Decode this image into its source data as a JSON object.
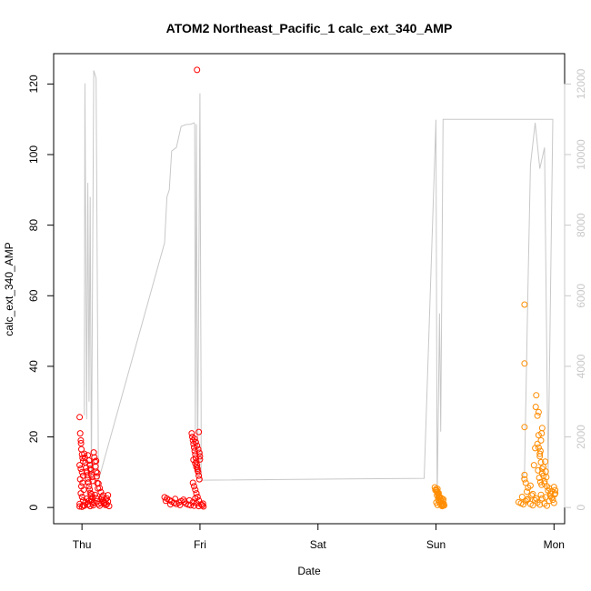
{
  "chart_data": {
    "type": "scatter",
    "title": "ATOM2 Northeast_Pacific_1 calc_ext_340_AMP",
    "xlabel": "Date",
    "ylabel": "calc_ext_340_AMP",
    "x_ticks": [
      "Thu",
      "Fri",
      "Sat",
      "Sun",
      "Mon"
    ],
    "x_tick_days": [
      0,
      1,
      2,
      3,
      4
    ],
    "xlim_days": [
      -0.24,
      4.09
    ],
    "ylim": [
      -4.6,
      128.6
    ],
    "y_ticks": [
      0,
      20,
      40,
      60,
      80,
      100,
      120
    ],
    "y2lim": [
      -460,
      12860
    ],
    "y2_ticks": [
      0,
      2000,
      4000,
      6000,
      8000,
      10000,
      12000
    ],
    "y2_color": "#c8c8c8",
    "grid": false,
    "legend": "none",
    "series": [
      {
        "color": "#ff0000",
        "marker": "open-circle",
        "points": [
          [
            -0.02,
            25.6
          ],
          [
            -0.015,
            21.0
          ],
          [
            -0.01,
            19.0
          ],
          [
            -0.008,
            18.2
          ],
          [
            -0.005,
            16.5
          ],
          [
            0.0,
            15.0
          ],
          [
            0.005,
            14.0
          ],
          [
            0.01,
            13.1
          ],
          [
            -0.02,
            12.0
          ],
          [
            -0.01,
            11.0
          ],
          [
            0.0,
            10.0
          ],
          [
            0.01,
            9.0
          ],
          [
            -0.015,
            8.0
          ],
          [
            0.005,
            7.0
          ],
          [
            -0.005,
            6.0
          ],
          [
            0.015,
            5.0
          ],
          [
            -0.01,
            4.0
          ],
          [
            0.0,
            3.0
          ],
          [
            0.01,
            2.0
          ],
          [
            -0.02,
            1.0
          ],
          [
            0.02,
            0.5
          ],
          [
            -0.02,
            0.3
          ],
          [
            0.0,
            0.2
          ],
          [
            0.01,
            0.6
          ],
          [
            0.02,
            15.2
          ],
          [
            0.025,
            14.1
          ],
          [
            0.03,
            12.7
          ],
          [
            0.035,
            11.3
          ],
          [
            0.04,
            10.2
          ],
          [
            0.045,
            9.1
          ],
          [
            0.05,
            8.2
          ],
          [
            0.055,
            7.1
          ],
          [
            0.06,
            6.0
          ],
          [
            0.065,
            5.1
          ],
          [
            0.07,
            4.1
          ],
          [
            0.075,
            3.2
          ],
          [
            0.08,
            2.2
          ],
          [
            0.085,
            1.6
          ],
          [
            0.09,
            1.1
          ],
          [
            0.095,
            0.6
          ],
          [
            0.03,
            1.5
          ],
          [
            0.04,
            2.5
          ],
          [
            0.05,
            0.8
          ],
          [
            0.06,
            1.9
          ],
          [
            0.07,
            0.4
          ],
          [
            0.08,
            3.8
          ],
          [
            0.09,
            2.9
          ],
          [
            0.1,
            1.4
          ],
          [
            0.05,
            14.8
          ],
          [
            0.06,
            13.3
          ],
          [
            0.065,
            12.1
          ],
          [
            0.07,
            11.0
          ],
          [
            0.075,
            10.5
          ],
          [
            0.08,
            9.4
          ],
          [
            0.085,
            8.6
          ],
          [
            0.09,
            7.5
          ],
          [
            0.1,
            15.6
          ],
          [
            0.105,
            14.2
          ],
          [
            0.11,
            13.0
          ],
          [
            0.115,
            11.6
          ],
          [
            0.12,
            10.1
          ],
          [
            0.125,
            8.8
          ],
          [
            0.13,
            6.9
          ],
          [
            0.135,
            5.4
          ],
          [
            0.11,
            3.6
          ],
          [
            0.12,
            2.7
          ],
          [
            0.13,
            1.8
          ],
          [
            0.14,
            1.0
          ],
          [
            0.15,
            0.5
          ],
          [
            0.16,
            1.3
          ],
          [
            0.17,
            2.4
          ],
          [
            0.18,
            3.4
          ],
          [
            0.15,
            5.5
          ],
          [
            0.16,
            4.4
          ],
          [
            0.17,
            3.0
          ],
          [
            0.18,
            2.0
          ],
          [
            0.19,
            1.2
          ],
          [
            0.2,
            0.7
          ],
          [
            0.21,
            2.6
          ],
          [
            0.22,
            3.5
          ],
          [
            0.19,
            1.5
          ],
          [
            0.2,
            2.2
          ],
          [
            0.21,
            0.9
          ],
          [
            0.22,
            1.7
          ],
          [
            0.23,
            0.4
          ],
          [
            0.14,
            6.8
          ],
          [
            0.13,
            9.8
          ],
          [
            0.12,
            13.2
          ],
          [
            0.7,
            2.9
          ],
          [
            0.72,
            2.5
          ],
          [
            0.74,
            2.1
          ],
          [
            0.76,
            1.7
          ],
          [
            0.78,
            1.3
          ],
          [
            0.8,
            1.0
          ],
          [
            0.82,
            1.4
          ],
          [
            0.84,
            1.8
          ],
          [
            0.86,
            2.2
          ],
          [
            0.88,
            1.1
          ],
          [
            0.9,
            0.8
          ],
          [
            0.92,
            0.6
          ],
          [
            0.94,
            1.5
          ],
          [
            0.96,
            2.6
          ],
          [
            0.71,
            1.9
          ],
          [
            0.75,
            0.9
          ],
          [
            0.79,
            2.4
          ],
          [
            0.83,
            0.7
          ],
          [
            0.87,
            1.6
          ],
          [
            0.91,
            2.0
          ],
          [
            0.95,
            0.5
          ],
          [
            0.97,
            1.2
          ],
          [
            0.99,
            0.4
          ],
          [
            1.01,
            0.9
          ],
          [
            0.93,
            21.0
          ],
          [
            0.935,
            20.0
          ],
          [
            0.94,
            19.0
          ],
          [
            0.945,
            18.0
          ],
          [
            0.95,
            17.0
          ],
          [
            0.955,
            16.0
          ],
          [
            0.96,
            15.0
          ],
          [
            0.965,
            14.0
          ],
          [
            0.97,
            13.0
          ],
          [
            0.975,
            12.0
          ],
          [
            0.98,
            11.0
          ],
          [
            0.985,
            10.0
          ],
          [
            0.99,
            9.0
          ],
          [
            0.995,
            8.0
          ],
          [
            0.94,
            7.0
          ],
          [
            0.95,
            6.0
          ],
          [
            0.96,
            5.0
          ],
          [
            0.97,
            4.0
          ],
          [
            0.98,
            3.0
          ],
          [
            0.99,
            2.0
          ],
          [
            0.955,
            19.5
          ],
          [
            0.965,
            18.5
          ],
          [
            0.975,
            17.5
          ],
          [
            0.985,
            16.5
          ],
          [
            0.995,
            15.5
          ],
          [
            1.0,
            14.5
          ],
          [
            0.945,
            13.5
          ],
          [
            0.96,
            12.5
          ],
          [
            0.97,
            11.5
          ],
          [
            0.98,
            10.5
          ],
          [
            0.99,
            21.4
          ],
          [
            1.0,
            13.6
          ],
          [
            0.975,
            124.0
          ],
          [
            1.02,
            0.6
          ],
          [
            1.025,
            1.1
          ],
          [
            1.03,
            0.3
          ]
        ]
      },
      {
        "color": "#ff8c00",
        "marker": "open-circle",
        "points": [
          [
            2.99,
            5.7
          ],
          [
            3.0,
            5.2
          ],
          [
            3.005,
            4.8
          ],
          [
            3.01,
            4.4
          ],
          [
            3.015,
            4.0
          ],
          [
            3.02,
            3.6
          ],
          [
            3.025,
            3.2
          ],
          [
            3.03,
            2.8
          ],
          [
            3.035,
            2.4
          ],
          [
            3.04,
            2.0
          ],
          [
            3.045,
            1.6
          ],
          [
            3.05,
            1.2
          ],
          [
            3.055,
            0.8
          ],
          [
            3.06,
            0.5
          ],
          [
            2.995,
            4.9
          ],
          [
            3.008,
            3.4
          ],
          [
            3.018,
            2.2
          ],
          [
            3.028,
            1.5
          ],
          [
            3.038,
            0.9
          ],
          [
            3.048,
            2.6
          ],
          [
            3.058,
            1.9
          ],
          [
            3.065,
            1.1
          ],
          [
            3.07,
            0.6
          ],
          [
            3.012,
            5.3
          ],
          [
            3.022,
            4.1
          ],
          [
            3.032,
            3.0
          ],
          [
            3.042,
            1.7
          ],
          [
            3.052,
            0.4
          ],
          [
            3.062,
            2.3
          ],
          [
            3.003,
            1.4
          ],
          [
            3.013,
            0.7
          ],
          [
            3.023,
            2.9
          ],
          [
            3.7,
            1.5
          ],
          [
            3.72,
            1.2
          ],
          [
            3.74,
            0.9
          ],
          [
            3.76,
            1.8
          ],
          [
            3.78,
            2.4
          ],
          [
            3.8,
            1.0
          ],
          [
            3.82,
            0.6
          ],
          [
            3.84,
            2.0
          ],
          [
            3.86,
            1.4
          ],
          [
            3.88,
            0.8
          ],
          [
            3.9,
            2.6
          ],
          [
            3.92,
            1.1
          ],
          [
            3.94,
            0.5
          ],
          [
            3.96,
            1.9
          ],
          [
            3.98,
            2.8
          ],
          [
            4.0,
            1.3
          ],
          [
            3.73,
            3.0
          ],
          [
            3.77,
            2.2
          ],
          [
            3.81,
            3.4
          ],
          [
            3.85,
            2.5
          ],
          [
            3.89,
            3.6
          ],
          [
            3.93,
            2.9
          ],
          [
            3.97,
            3.2
          ],
          [
            4.01,
            4.0
          ],
          [
            3.75,
            9.2
          ],
          [
            3.75,
            8.0
          ],
          [
            3.75,
            22.8
          ],
          [
            3.75,
            40.8
          ],
          [
            3.75,
            57.5
          ],
          [
            3.76,
            7.0
          ],
          [
            3.77,
            4.5
          ],
          [
            3.78,
            5.6
          ],
          [
            3.8,
            6.2
          ],
          [
            3.82,
            3.8
          ],
          [
            3.83,
            12.0
          ],
          [
            3.84,
            16.8
          ],
          [
            3.845,
            28.5
          ],
          [
            3.85,
            31.8
          ],
          [
            3.86,
            26.0
          ],
          [
            3.87,
            20.5
          ],
          [
            3.87,
            27.0
          ],
          [
            3.88,
            14.5
          ],
          [
            3.885,
            16.0
          ],
          [
            3.89,
            19.0
          ],
          [
            3.895,
            21.0
          ],
          [
            3.9,
            22.5
          ],
          [
            3.9,
            9.8
          ],
          [
            3.91,
            11.5
          ],
          [
            3.92,
            7.4
          ],
          [
            3.925,
            13.0
          ],
          [
            3.93,
            10.2
          ],
          [
            3.935,
            8.6
          ],
          [
            3.94,
            6.0
          ],
          [
            3.95,
            4.8
          ],
          [
            3.96,
            5.4
          ],
          [
            3.97,
            3.9
          ],
          [
            3.98,
            4.6
          ],
          [
            3.99,
            2.2
          ],
          [
            4.0,
            5.8
          ],
          [
            4.005,
            3.7
          ],
          [
            4.01,
            4.9
          ],
          [
            3.86,
            18.0
          ],
          [
            3.87,
            17.0
          ],
          [
            3.88,
            15.2
          ],
          [
            3.89,
            12.8
          ],
          [
            3.9,
            11.0
          ],
          [
            3.91,
            9.0
          ],
          [
            3.92,
            6.8
          ],
          [
            3.865,
            10.5
          ],
          [
            3.875,
            8.4
          ],
          [
            3.885,
            7.2
          ],
          [
            3.895,
            6.4
          ]
        ]
      },
      {
        "color": "#c8c8c8",
        "line": true,
        "axis": "right",
        "points": [
          [
            0.02,
            2611
          ],
          [
            0.025,
            12015
          ],
          [
            0.04,
            2500
          ],
          [
            0.05,
            9200
          ],
          [
            0.06,
            3000
          ],
          [
            0.07,
            8800
          ],
          [
            0.08,
            800
          ],
          [
            0.1,
            12384
          ],
          [
            0.12,
            12158
          ],
          [
            0.14,
            770
          ],
          [
            0.7,
            7500
          ],
          [
            0.72,
            8800
          ],
          [
            0.74,
            9000
          ],
          [
            0.76,
            10100
          ],
          [
            0.8,
            10200
          ],
          [
            0.84,
            10800
          ],
          [
            0.88,
            10850
          ],
          [
            0.92,
            10860
          ],
          [
            0.95,
            10900
          ],
          [
            0.955,
            10860
          ],
          [
            0.96,
            2200
          ],
          [
            0.97,
            10860
          ],
          [
            0.98,
            900
          ],
          [
            1.0,
            11737
          ],
          [
            1.01,
            2700
          ],
          [
            1.01,
            773
          ],
          [
            2.9,
            825
          ],
          [
            3.0,
            10987
          ],
          [
            3.01,
            100
          ],
          [
            3.03,
            5500
          ],
          [
            3.04,
            2150
          ],
          [
            3.06,
            11000
          ],
          [
            3.6,
            11000
          ],
          [
            3.99,
            10997
          ],
          [
            3.95,
            900
          ],
          [
            3.92,
            10200
          ],
          [
            3.88,
            9600
          ],
          [
            3.84,
            10900
          ],
          [
            3.8,
            9700
          ],
          [
            3.78,
            6400
          ],
          [
            3.75,
            1000
          ],
          [
            3.72,
            800
          ]
        ]
      }
    ]
  }
}
